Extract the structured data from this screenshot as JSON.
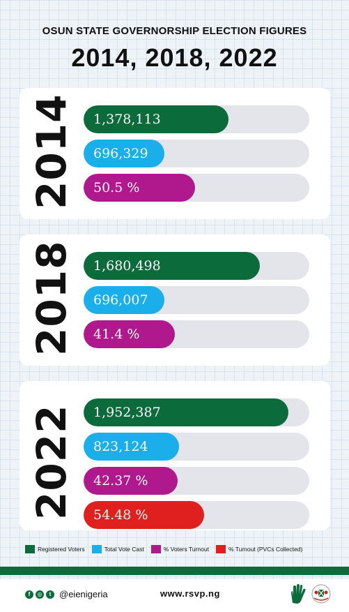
{
  "header": {
    "subtitle": "OSUN STATE GOVERNORSHIP ELECTION FIGURES",
    "title": "2014, 2018, 2022"
  },
  "colors": {
    "registered": "#0c6b3b",
    "cast": "#1aaeea",
    "turnout": "#b0188e",
    "pvc_turnout": "#e0201f",
    "track": "#e4e5ea"
  },
  "chart_data": [
    {
      "type": "bar",
      "year": "2014",
      "bars": [
        {
          "key": "registered",
          "label": "1,378,113",
          "value": 1378113
        },
        {
          "key": "cast",
          "label": "696,329",
          "value": 696329
        },
        {
          "key": "turnout",
          "label": "50.5 %",
          "value": 50.5
        }
      ]
    },
    {
      "type": "bar",
      "year": "2018",
      "bars": [
        {
          "key": "registered",
          "label": "1,680,498",
          "value": 1680498
        },
        {
          "key": "cast",
          "label": "696,007",
          "value": 696007
        },
        {
          "key": "turnout",
          "label": "41.4 %",
          "value": 41.4
        }
      ]
    },
    {
      "type": "bar",
      "year": "2022",
      "bars": [
        {
          "key": "registered",
          "label": "1,952,387",
          "value": 1952387
        },
        {
          "key": "cast",
          "label": "823,124",
          "value": 823124
        },
        {
          "key": "turnout",
          "label": "42.37 %",
          "value": 42.37
        },
        {
          "key": "pvc_turnout",
          "label": "54.48 %",
          "value": 54.48
        }
      ]
    }
  ],
  "legend": [
    {
      "key": "registered",
      "label": "Registered Voters"
    },
    {
      "key": "cast",
      "label": "Total Vote Cast"
    },
    {
      "key": "turnout",
      "label": "% Voters Turnout"
    },
    {
      "key": "pvc_turnout",
      "label": "% Turnout (PVCs Collected)"
    }
  ],
  "footer": {
    "handle": "@eienigeria",
    "website": "www.rsvp.ng",
    "icons": [
      "facebook-icon",
      "instagram-icon",
      "twitter-icon",
      "hand-logo-icon",
      "coat-of-arms-icon"
    ]
  }
}
